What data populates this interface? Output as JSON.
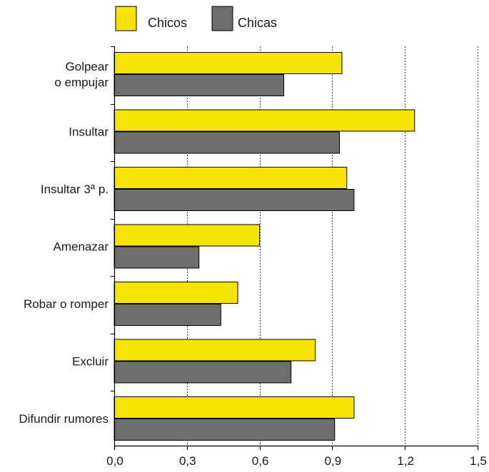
{
  "chart_data": {
    "type": "bar",
    "orientation": "horizontal",
    "categories": [
      [
        "Golpear",
        "o empujar"
      ],
      [
        "Insultar"
      ],
      [
        "Insultar 3ª p."
      ],
      [
        "Amenazar"
      ],
      [
        "Robar o romper"
      ],
      [
        "Excluir"
      ],
      [
        "Difundir rumores"
      ]
    ],
    "series": [
      {
        "name": "Chicos",
        "color": "#f5e400",
        "values": [
          0.94,
          1.24,
          0.96,
          0.6,
          0.51,
          0.83,
          0.99
        ]
      },
      {
        "name": "Chicas",
        "color": "#6e6e6e",
        "values": [
          0.7,
          0.93,
          0.99,
          0.35,
          0.44,
          0.73,
          0.91
        ]
      }
    ],
    "xlim": [
      0,
      1.5
    ],
    "xticks": [
      "0,0",
      "0,3",
      "0,6",
      "0,9",
      "1,2",
      "1,5"
    ],
    "grid": "vertical-dashed",
    "legend": "top-left",
    "title": "",
    "xlabel": "",
    "ylabel": ""
  }
}
